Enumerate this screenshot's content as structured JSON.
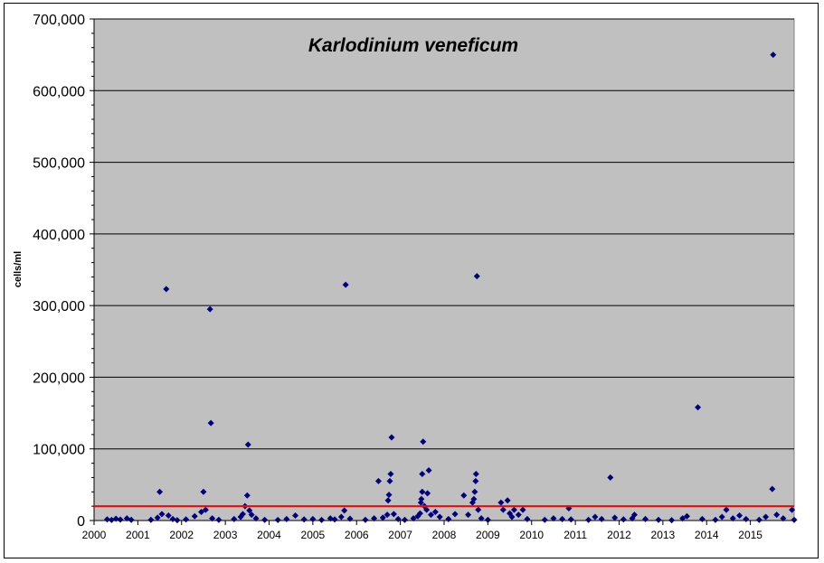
{
  "chart_data": {
    "type": "scatter",
    "title": "Karlodinium veneficum",
    "xlabel": "",
    "ylabel": "cells/ml",
    "xlim": [
      2000,
      2016
    ],
    "ylim": [
      0,
      700000
    ],
    "x_ticks": [
      "2000",
      "2001",
      "2002",
      "2003",
      "2004",
      "2005",
      "2006",
      "2007",
      "2008",
      "2009",
      "2010",
      "2011",
      "2012",
      "2013",
      "2014",
      "2015"
    ],
    "y_ticks": [
      "0",
      "100,000",
      "200,000",
      "300,000",
      "400,000",
      "500,000",
      "600,000",
      "700,000"
    ],
    "y_tick_values": [
      0,
      100000,
      200000,
      300000,
      400000,
      500000,
      600000,
      700000
    ],
    "grid": true,
    "threshold": {
      "value": 20000,
      "color": "#ff0000"
    },
    "colors": {
      "plot_bg": "#c0c0c0",
      "marker": "#000080",
      "grid": "#000000"
    },
    "series": [
      {
        "marker": "diamond",
        "points": [
          [
            2000.3,
            1500
          ],
          [
            2000.4,
            800
          ],
          [
            2000.5,
            2500
          ],
          [
            2000.6,
            1200
          ],
          [
            2000.75,
            3000
          ],
          [
            2000.85,
            900
          ],
          [
            2001.3,
            1000
          ],
          [
            2001.45,
            4000
          ],
          [
            2001.5,
            40000
          ],
          [
            2001.55,
            9000
          ],
          [
            2001.65,
            323000
          ],
          [
            2001.7,
            7000
          ],
          [
            2001.8,
            2000
          ],
          [
            2001.9,
            500
          ],
          [
            2002.1,
            1500
          ],
          [
            2002.3,
            6000
          ],
          [
            2002.45,
            12000
          ],
          [
            2002.5,
            40000
          ],
          [
            2002.55,
            15000
          ],
          [
            2002.65,
            295000
          ],
          [
            2002.67,
            136000
          ],
          [
            2002.7,
            3000
          ],
          [
            2002.85,
            1000
          ],
          [
            2003.2,
            2000
          ],
          [
            2003.35,
            5000
          ],
          [
            2003.4,
            9000
          ],
          [
            2003.45,
            20000
          ],
          [
            2003.5,
            35000
          ],
          [
            2003.52,
            106000
          ],
          [
            2003.55,
            14000
          ],
          [
            2003.6,
            8000
          ],
          [
            2003.7,
            3000
          ],
          [
            2003.9,
            1000
          ],
          [
            2004.2,
            800
          ],
          [
            2004.4,
            2000
          ],
          [
            2004.6,
            7000
          ],
          [
            2004.8,
            1500
          ],
          [
            2005.0,
            2000
          ],
          [
            2005.2,
            800
          ],
          [
            2005.4,
            3000
          ],
          [
            2005.5,
            1500
          ],
          [
            2005.65,
            5000
          ],
          [
            2005.72,
            14000
          ],
          [
            2005.75,
            329000
          ],
          [
            2005.85,
            2500
          ],
          [
            2006.2,
            1000
          ],
          [
            2006.4,
            3000
          ],
          [
            2006.5,
            55000
          ],
          [
            2006.6,
            4000
          ],
          [
            2006.7,
            8000
          ],
          [
            2006.72,
            28000
          ],
          [
            2006.74,
            36000
          ],
          [
            2006.76,
            55000
          ],
          [
            2006.78,
            65000
          ],
          [
            2006.8,
            116000
          ],
          [
            2006.85,
            9000
          ],
          [
            2006.95,
            2000
          ],
          [
            2007.1,
            1000
          ],
          [
            2007.3,
            3000
          ],
          [
            2007.4,
            6000
          ],
          [
            2007.45,
            10000
          ],
          [
            2007.47,
            25000
          ],
          [
            2007.48,
            30000
          ],
          [
            2007.5,
            40000
          ],
          [
            2007.5,
            65000
          ],
          [
            2007.52,
            110000
          ],
          [
            2007.55,
            20000
          ],
          [
            2007.6,
            15000
          ],
          [
            2007.62,
            38000
          ],
          [
            2007.65,
            70000
          ],
          [
            2007.7,
            8000
          ],
          [
            2007.8,
            12000
          ],
          [
            2007.9,
            5000
          ],
          [
            2008.1,
            2000
          ],
          [
            2008.25,
            9000
          ],
          [
            2008.45,
            35000
          ],
          [
            2008.55,
            8000
          ],
          [
            2008.65,
            25000
          ],
          [
            2008.68,
            30000
          ],
          [
            2008.7,
            40000
          ],
          [
            2008.72,
            55000
          ],
          [
            2008.73,
            65000
          ],
          [
            2008.75,
            341000
          ],
          [
            2008.78,
            15000
          ],
          [
            2008.85,
            3000
          ],
          [
            2009.0,
            1000
          ],
          [
            2009.3,
            25000
          ],
          [
            2009.35,
            15000
          ],
          [
            2009.45,
            28000
          ],
          [
            2009.5,
            10000
          ],
          [
            2009.55,
            5000
          ],
          [
            2009.6,
            15000
          ],
          [
            2009.7,
            8000
          ],
          [
            2009.8,
            15000
          ],
          [
            2009.9,
            2000
          ],
          [
            2010.3,
            1000
          ],
          [
            2010.5,
            3000
          ],
          [
            2010.7,
            2000
          ],
          [
            2010.85,
            17000
          ],
          [
            2010.9,
            1500
          ],
          [
            2011.3,
            1000
          ],
          [
            2011.45,
            5000
          ],
          [
            2011.6,
            2000
          ],
          [
            2011.8,
            60000
          ],
          [
            2011.9,
            4000
          ],
          [
            2012.1,
            1500
          ],
          [
            2012.3,
            3000
          ],
          [
            2012.35,
            8000
          ],
          [
            2012.6,
            2000
          ],
          [
            2012.9,
            1000
          ],
          [
            2013.2,
            500
          ],
          [
            2013.45,
            3000
          ],
          [
            2013.55,
            6000
          ],
          [
            2013.8,
            158000
          ],
          [
            2013.9,
            2000
          ],
          [
            2014.2,
            1000
          ],
          [
            2014.35,
            5000
          ],
          [
            2014.45,
            15000
          ],
          [
            2014.6,
            3000
          ],
          [
            2014.75,
            7000
          ],
          [
            2014.9,
            2000
          ],
          [
            2015.2,
            1000
          ],
          [
            2015.35,
            5000
          ],
          [
            2015.5,
            44000
          ],
          [
            2015.52,
            650000
          ],
          [
            2015.6,
            8000
          ],
          [
            2015.75,
            3000
          ],
          [
            2015.95,
            15000
          ],
          [
            2016.0,
            1000
          ]
        ]
      }
    ]
  }
}
